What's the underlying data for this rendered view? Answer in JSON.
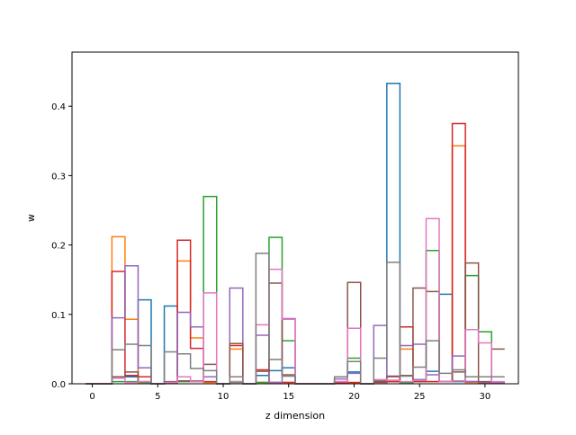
{
  "chart_data": {
    "type": "step",
    "xlabel": "z dimension",
    "ylabel": "w",
    "xlim": [
      -1.55,
      32.55
    ],
    "ylim": [
      0,
      0.478
    ],
    "xticks": [
      0,
      5,
      10,
      15,
      20,
      25,
      30
    ],
    "yticks": [
      0.0,
      0.1,
      0.2,
      0.3,
      0.4
    ],
    "xtick_labels": [
      "0",
      "5",
      "10",
      "15",
      "20",
      "25",
      "30"
    ],
    "ytick_labels": [
      "0.0",
      "0.1",
      "0.2",
      "0.3",
      "0.4"
    ],
    "grid": false,
    "legend": "none",
    "x": [
      0,
      1,
      2,
      3,
      4,
      5,
      6,
      7,
      8,
      9,
      10,
      11,
      12,
      13,
      14,
      15,
      16,
      17,
      18,
      19,
      20,
      21,
      22,
      23,
      24,
      25,
      26,
      27,
      28,
      29,
      30,
      31
    ],
    "series": [
      {
        "color": "#1f77b4",
        "values": [
          0,
          0,
          0.01,
          0.01,
          0.121,
          0,
          0.112,
          0.004,
          0.003,
          0.01,
          0,
          0.003,
          0,
          0.012,
          0.019,
          0.023,
          0,
          0,
          0,
          0.002,
          0.017,
          0,
          0.005,
          0.433,
          0.002,
          0.006,
          0.018,
          0.129,
          0.003,
          0.003,
          0.001,
          0.002
        ]
      },
      {
        "color": "#ff7f0e",
        "values": [
          0,
          0,
          0.212,
          0.093,
          0.002,
          0,
          0.002,
          0.177,
          0.066,
          0.002,
          0,
          0.05,
          0,
          0.002,
          0.002,
          0.002,
          0,
          0,
          0,
          0.001,
          0.001,
          0,
          0.003,
          0.005,
          0.05,
          0.003,
          0.003,
          0.003,
          0.343,
          0.002,
          0.001,
          0.002
        ]
      },
      {
        "color": "#2ca02c",
        "values": [
          0,
          0,
          0.003,
          0.003,
          0.002,
          0,
          0.002,
          0.003,
          0.003,
          0.27,
          0,
          0.002,
          0,
          0.002,
          0.211,
          0.062,
          0,
          0,
          0,
          0.001,
          0.037,
          0,
          0.003,
          0.003,
          0.002,
          0.003,
          0.192,
          0.003,
          0.004,
          0.156,
          0.075,
          0.002
        ]
      },
      {
        "color": "#d62728",
        "values": [
          0,
          0,
          0.162,
          0.012,
          0.01,
          0,
          0.002,
          0.207,
          0.051,
          0.003,
          0,
          0.055,
          0,
          0.02,
          0.002,
          0.002,
          0,
          0,
          0,
          0.001,
          0.002,
          0,
          0.002,
          0.003,
          0.082,
          0.003,
          0.003,
          0.003,
          0.375,
          0.003,
          0.002,
          0.002
        ]
      },
      {
        "color": "#9467bd",
        "values": [
          0,
          0,
          0.095,
          0.17,
          0.023,
          0,
          0.002,
          0.103,
          0.082,
          0.01,
          0,
          0.138,
          0,
          0.07,
          0.002,
          0.094,
          0,
          0,
          0,
          0.007,
          0.015,
          0,
          0.084,
          0.01,
          0.055,
          0.057,
          0.013,
          0.003,
          0.04,
          0.003,
          0.002,
          0.002
        ]
      },
      {
        "color": "#8c564b",
        "values": [
          0,
          0,
          0.01,
          0.017,
          0.003,
          0,
          0.003,
          0.004,
          0.004,
          0.028,
          0,
          0.058,
          0,
          0.018,
          0.145,
          0.013,
          0,
          0,
          0,
          0.003,
          0.146,
          0,
          0.003,
          0.011,
          0.012,
          0.138,
          0.133,
          0.003,
          0.017,
          0.174,
          0.003,
          0.05
        ]
      },
      {
        "color": "#e377c2",
        "values": [
          0,
          0,
          0.008,
          0.002,
          0.003,
          0,
          0.002,
          0.01,
          0.003,
          0.131,
          0,
          0.003,
          0,
          0.085,
          0.165,
          0.093,
          0,
          0,
          0,
          0.003,
          0.08,
          0,
          0.006,
          0.005,
          0.003,
          0.005,
          0.238,
          0.003,
          0.004,
          0.078,
          0.059,
          0.003
        ]
      },
      {
        "color": "#7f7f7f",
        "values": [
          0,
          0,
          0.049,
          0.057,
          0.055,
          0,
          0.046,
          0.043,
          0.022,
          0.019,
          0,
          0.01,
          0,
          0.188,
          0.035,
          0.011,
          0,
          0,
          0,
          0.01,
          0.032,
          0,
          0.037,
          0.175,
          0.011,
          0.024,
          0.062,
          0.015,
          0.02,
          0.01,
          0.01,
          0.01
        ]
      }
    ]
  }
}
